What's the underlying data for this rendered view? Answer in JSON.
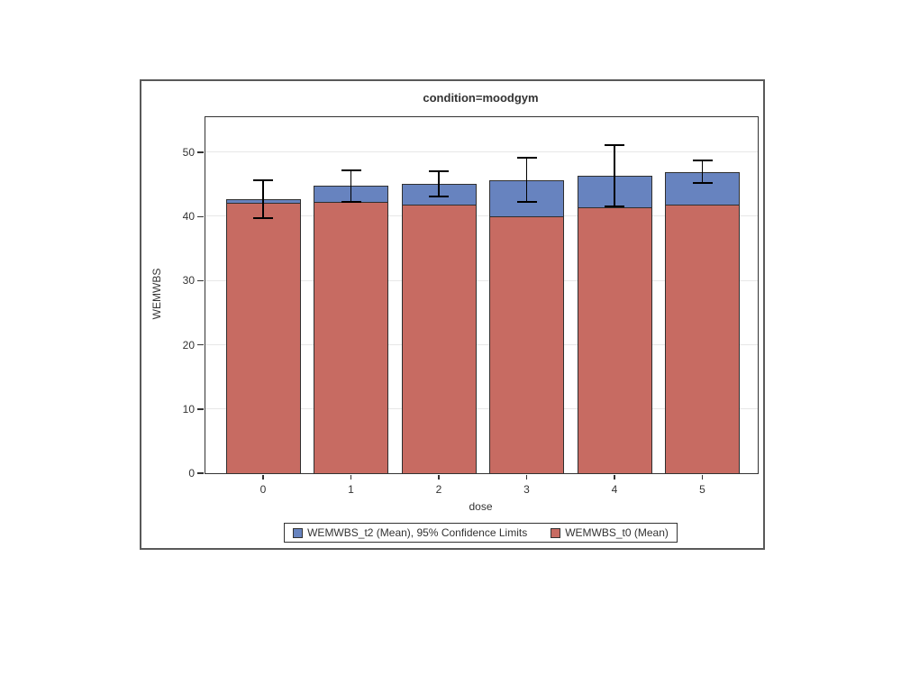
{
  "chart_data": {
    "type": "bar",
    "title": "condition=moodgym",
    "xlabel": "dose",
    "ylabel": "WEMWBS",
    "categories": [
      "0",
      "1",
      "2",
      "3",
      "4",
      "5"
    ],
    "series": [
      {
        "name": "WEMWBS_t2 (Mean)",
        "color": "#6783BF",
        "values": [
          42.7,
          44.8,
          45.1,
          45.6,
          46.3,
          46.9
        ]
      },
      {
        "name": "WEMWBS_t0 (Mean)",
        "color": "#C76B62",
        "values": [
          42.2,
          42.3,
          41.9,
          40.0,
          41.4,
          41.9
        ]
      }
    ],
    "error_bars": {
      "applies_to": "WEMWBS_t2 (Mean)",
      "label": "95% Confidence Limits",
      "upper": [
        45.6,
        47.2,
        47.0,
        49.2,
        51.1,
        48.7
      ],
      "lower": [
        39.7,
        42.3,
        43.1,
        42.3,
        41.6,
        45.2
      ]
    },
    "y_ticks": [
      0,
      10,
      20,
      30,
      40,
      50
    ],
    "ylim": [
      0,
      55.5
    ],
    "grid": true,
    "legend_position": "bottom",
    "legend": [
      {
        "label": "WEMWBS_t2 (Mean), 95% Confidence Limits",
        "color": "#6783BF"
      },
      {
        "label": "WEMWBS_t0 (Mean)",
        "color": "#C76B62"
      }
    ]
  },
  "style": {
    "t2_fill": "#6783BF",
    "t0_fill": "#C76B62",
    "bar_border": "#2F2F2F",
    "error_color": "#000000",
    "grid_color": "#E7E7E7",
    "wall_border": "#333333",
    "frame_border": "#595959",
    "text_color": "#333333",
    "background": "#FFFFFF"
  }
}
